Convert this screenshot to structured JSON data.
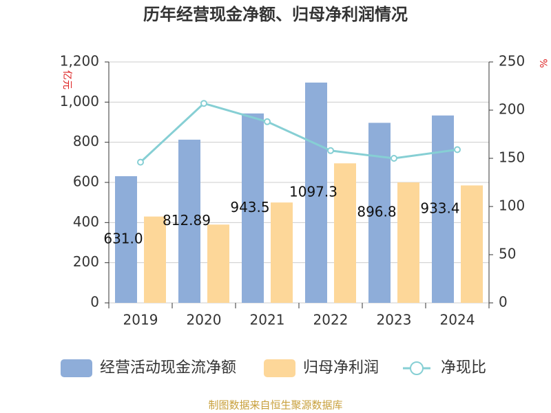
{
  "chart_data": {
    "type": "bar",
    "title": "历年经营现金净额、归母净利润情况",
    "y_label": "亿元",
    "y2_label": "%",
    "categories": [
      "2019",
      "2020",
      "2021",
      "2022",
      "2023",
      "2024"
    ],
    "series": [
      {
        "name": "经营活动现金流净额",
        "type": "bar",
        "color": "#8eadd9",
        "values": [
          631.0,
          812.89,
          943.5,
          1097.3,
          896.8,
          933.4
        ],
        "value_labels": [
          "631.0",
          "812.89",
          "943.5",
          "1097.3",
          "896.8",
          "933.4"
        ]
      },
      {
        "name": "归母净利润",
        "type": "bar",
        "color": "#fdd799",
        "values": [
          430,
          390,
          500,
          695,
          600,
          585
        ]
      },
      {
        "name": "净现比",
        "type": "line",
        "axis": "y2",
        "color": "#86cfd4",
        "values": [
          146,
          207,
          188,
          158,
          150,
          159
        ]
      }
    ],
    "ylim": [
      0,
      1200
    ],
    "yticks": [
      0,
      200,
      400,
      600,
      800,
      {
        "value": 1000,
        "label": "1,000"
      },
      {
        "value": 1200,
        "label": "1,200"
      }
    ],
    "y2lim": [
      0,
      250
    ],
    "y2ticks": [
      0,
      50,
      100,
      150,
      200,
      250
    ],
    "grid": true,
    "legend": "bottom",
    "source": "制图数据来自恒生聚源数据库"
  }
}
